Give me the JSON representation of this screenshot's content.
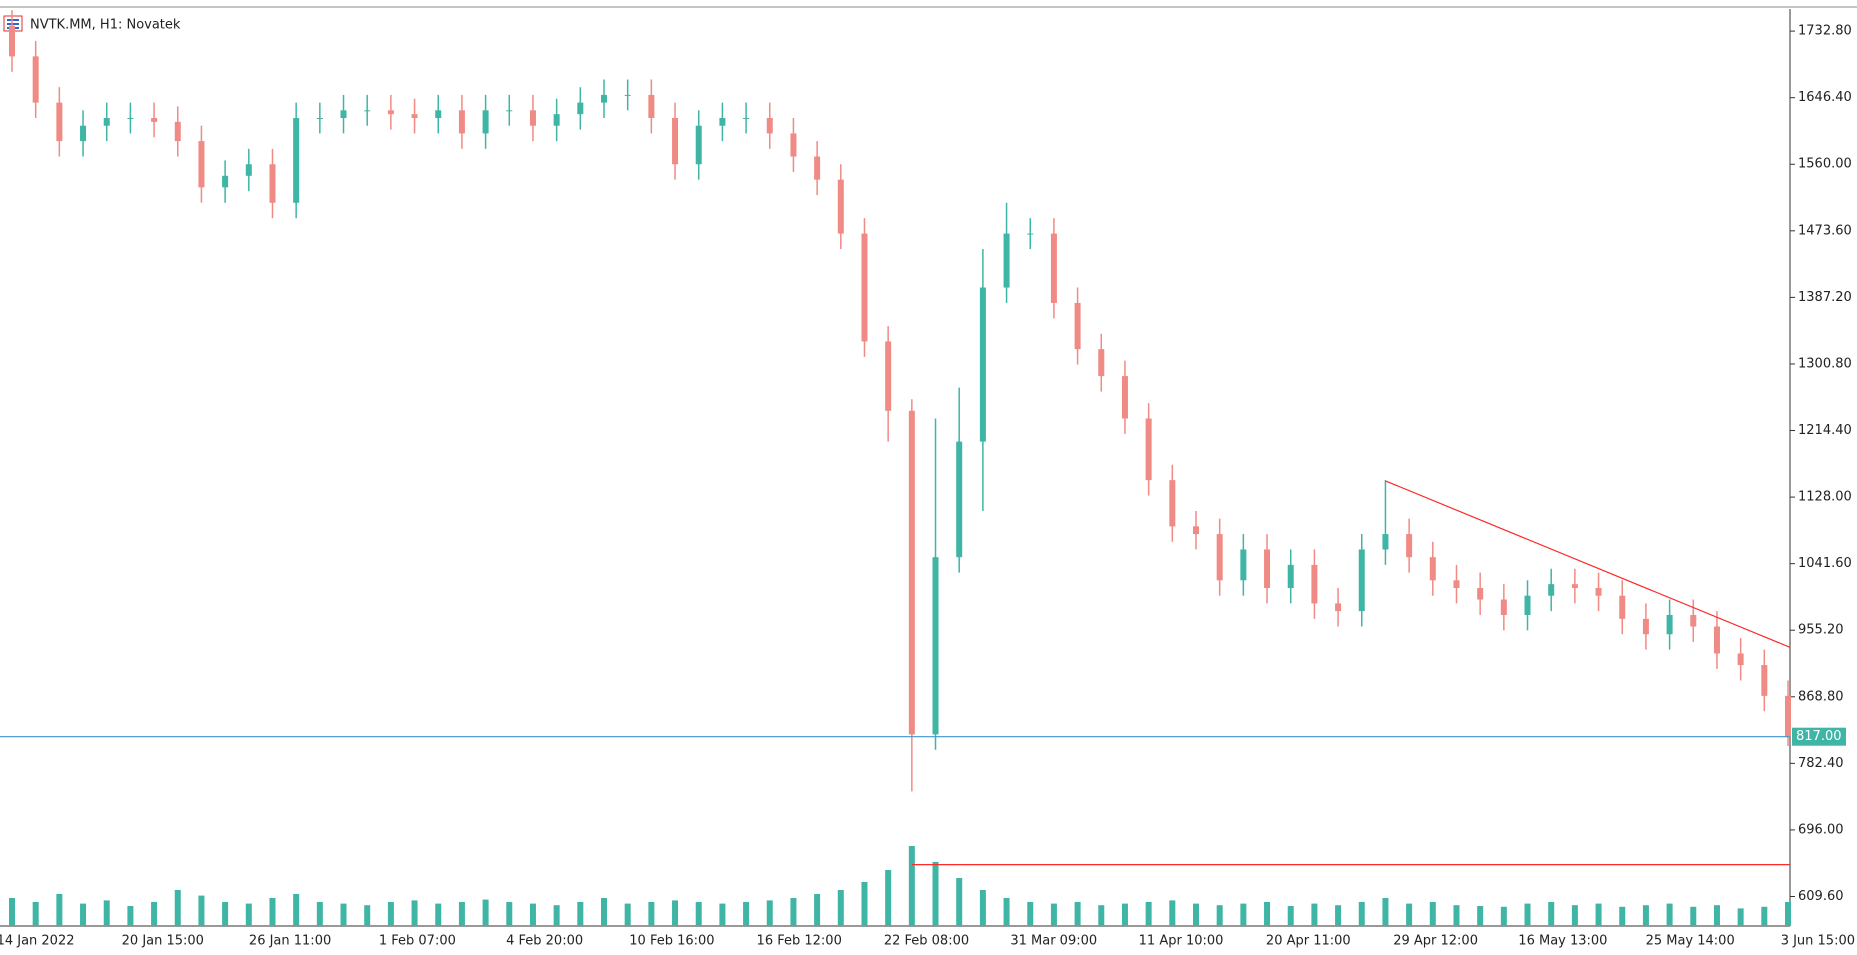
{
  "chart_data": {
    "type": "candlestick",
    "title": "NVTK.MM, H1:  Novatek",
    "up_color": "#3fb5a5",
    "down_color": "#f08a85",
    "ylim": [
      571.3,
      1761.5
    ],
    "yticks": [
      {
        "value": 1732.8,
        "label": "1732.80"
      },
      {
        "value": 1646.4,
        "label": "1646.40"
      },
      {
        "value": 1560,
        "label": "1560.00"
      },
      {
        "value": 1473.6,
        "label": "1473.60"
      },
      {
        "value": 1387.2,
        "label": "1387.20"
      },
      {
        "value": 1300.8,
        "label": "1300.80"
      },
      {
        "value": 1214.4,
        "label": "1214.40"
      },
      {
        "value": 1128,
        "label": "1128.00"
      },
      {
        "value": 1041.6,
        "label": "1041.60"
      },
      {
        "value": 955.2,
        "label": "955.20"
      },
      {
        "value": 868.8,
        "label": "868.80"
      },
      {
        "value": 782.4,
        "label": "782.40"
      },
      {
        "value": 696,
        "label": "696.00"
      },
      {
        "value": 609.6,
        "label": "609.60"
      }
    ],
    "x_labels": [
      "14 Jan 2022",
      "20 Jan 15:00",
      "26 Jan 11:00",
      "1 Feb 07:00",
      "4 Feb 20:00",
      "10 Feb 16:00",
      "16 Feb 12:00",
      "22 Feb 08:00",
      "31 Mar 09:00",
      "11 Apr 10:00",
      "20 Apr 11:00",
      "29 Apr 12:00",
      "16 May 13:00",
      "25 May 14:00",
      "3 Jun 15:00"
    ],
    "open": [
      1740,
      1700,
      1640,
      1590,
      1610,
      1620,
      1620,
      1615,
      1590,
      1530,
      1545,
      1560,
      1510,
      1620,
      1620,
      1630,
      1630,
      1625,
      1620,
      1630,
      1600,
      1630,
      1630,
      1610,
      1625,
      1640,
      1650,
      1650,
      1620,
      1560,
      1610,
      1620,
      1620,
      1600,
      1570,
      1540,
      1470,
      1330,
      1240,
      820,
      1050,
      1200,
      1400,
      1470,
      1470,
      1380,
      1320,
      1285,
      1230,
      1150,
      1090,
      1080,
      1020,
      1060,
      1010,
      1040,
      990,
      980,
      1060,
      1080,
      1050,
      1020,
      1010,
      995,
      975,
      1000,
      1015,
      1010,
      1000,
      970,
      950,
      975,
      960,
      925,
      910,
      870
    ],
    "high": [
      1760,
      1720,
      1660,
      1630,
      1640,
      1640,
      1640,
      1635,
      1610,
      1565,
      1580,
      1580,
      1640,
      1640,
      1650,
      1650,
      1650,
      1645,
      1650,
      1650,
      1650,
      1650,
      1650,
      1645,
      1660,
      1670,
      1670,
      1670,
      1640,
      1630,
      1640,
      1640,
      1640,
      1620,
      1590,
      1560,
      1490,
      1350,
      1255,
      1230,
      1270,
      1450,
      1510,
      1490,
      1490,
      1400,
      1340,
      1305,
      1250,
      1170,
      1110,
      1100,
      1080,
      1080,
      1060,
      1060,
      1010,
      1080,
      1150,
      1100,
      1070,
      1040,
      1030,
      1015,
      1020,
      1035,
      1035,
      1030,
      1020,
      990,
      995,
      995,
      980,
      945,
      930,
      890
    ],
    "low": [
      1680,
      1620,
      1570,
      1570,
      1590,
      1600,
      1595,
      1570,
      1510,
      1510,
      1525,
      1490,
      1490,
      1600,
      1600,
      1610,
      1605,
      1600,
      1600,
      1580,
      1580,
      1610,
      1590,
      1590,
      1605,
      1620,
      1630,
      1600,
      1540,
      1540,
      1590,
      1600,
      1580,
      1550,
      1520,
      1450,
      1310,
      1200,
      746,
      800,
      1030,
      1110,
      1380,
      1450,
      1360,
      1300,
      1265,
      1210,
      1130,
      1070,
      1060,
      1000,
      1000,
      990,
      990,
      970,
      960,
      960,
      1040,
      1030,
      1000,
      990,
      975,
      955,
      955,
      980,
      990,
      980,
      950,
      930,
      930,
      940,
      905,
      890,
      850,
      805
    ],
    "close": [
      1700,
      1640,
      1590,
      1610,
      1620,
      1620,
      1615,
      1590,
      1530,
      1545,
      1560,
      1510,
      1620,
      1620,
      1630,
      1630,
      1625,
      1620,
      1630,
      1600,
      1630,
      1630,
      1610,
      1625,
      1640,
      1650,
      1650,
      1620,
      1560,
      1610,
      1620,
      1620,
      1600,
      1570,
      1540,
      1470,
      1330,
      1240,
      820,
      1050,
      1200,
      1400,
      1470,
      1470,
      1380,
      1320,
      1285,
      1230,
      1150,
      1090,
      1080,
      1020,
      1060,
      1010,
      1040,
      990,
      980,
      1060,
      1080,
      1050,
      1020,
      1010,
      995,
      975,
      1000,
      1015,
      1010,
      1000,
      970,
      950,
      975,
      960,
      925,
      910,
      870,
      817
    ],
    "volume": [
      35,
      30,
      40,
      28,
      32,
      25,
      30,
      45,
      38,
      30,
      28,
      35,
      40,
      30,
      28,
      26,
      30,
      32,
      28,
      30,
      33,
      30,
      28,
      26,
      30,
      35,
      28,
      30,
      32,
      30,
      28,
      30,
      32,
      35,
      40,
      45,
      55,
      70,
      100,
      80,
      60,
      45,
      35,
      30,
      28,
      30,
      26,
      28,
      30,
      32,
      28,
      26,
      28,
      30,
      25,
      28,
      26,
      30,
      35,
      28,
      30,
      26,
      25,
      24,
      28,
      30,
      26,
      28,
      24,
      26,
      28,
      24,
      26,
      22,
      24,
      30
    ],
    "price_line": {
      "value": 817,
      "label": "817.00",
      "color": "#3d95d0"
    },
    "support_line": {
      "bar": 38,
      "value": 651,
      "color": "#ff2a2a"
    },
    "trendline": {
      "bar": 58,
      "value": 1149,
      "end_value": 933,
      "color": "#ff2a2a"
    }
  }
}
